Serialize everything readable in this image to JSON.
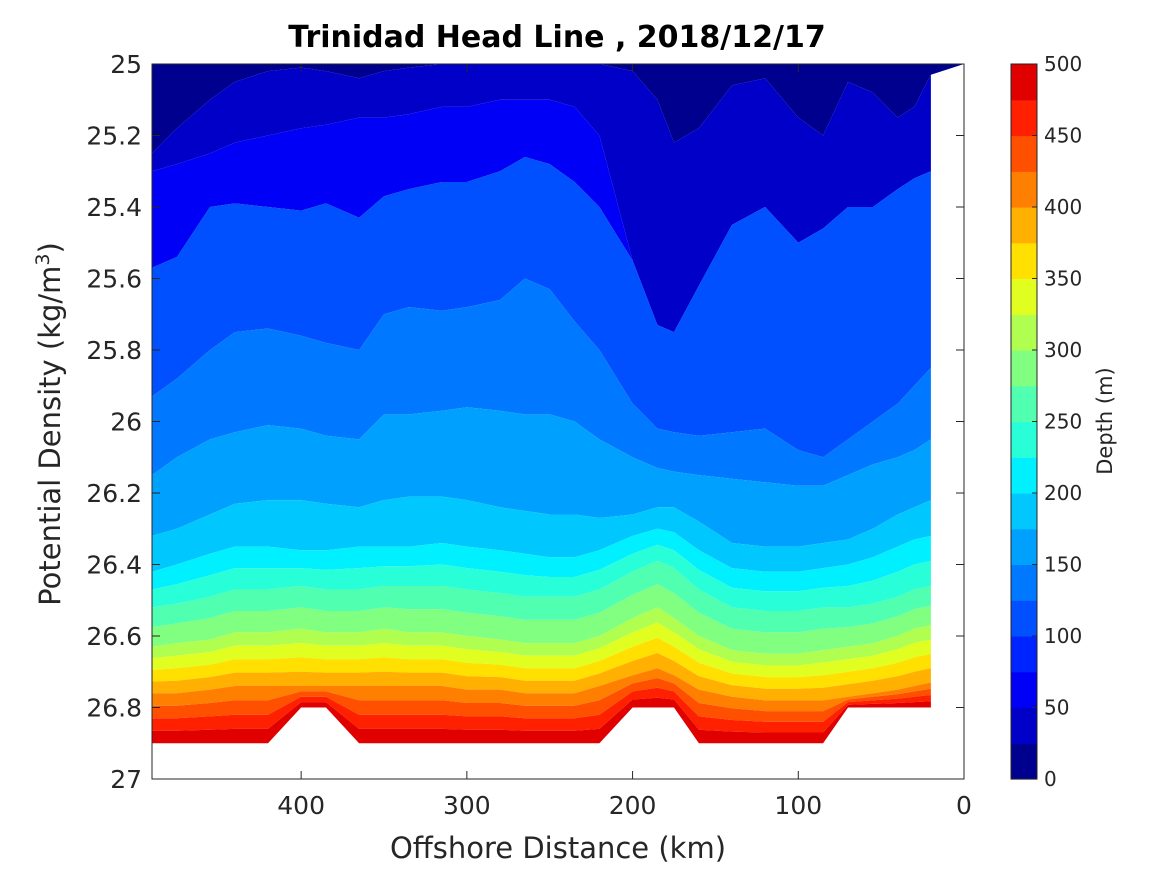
{
  "chart_data": {
    "type": "heatmap",
    "plot_style": "filled contour",
    "title": "Trinidad Head Line , 2018/12/17",
    "xlabel": "Offshore Distance (km)",
    "ylabel": "Potential Density (kg/m3)",
    "ylabel_parts": {
      "main": "Potential Density (kg/m",
      "sup": "3",
      "end": ")"
    },
    "x_reversed": true,
    "y_reversed": true,
    "xlim": [
      490,
      0
    ],
    "ylim": [
      25,
      27
    ],
    "xticks": [
      "400",
      "300",
      "200",
      "100",
      "0"
    ],
    "xtick_values": [
      400,
      300,
      200,
      100,
      0
    ],
    "yticks": [
      "25",
      "25.2",
      "25.4",
      "25.6",
      "25.8",
      "26",
      "26.2",
      "26.4",
      "26.6",
      "26.8",
      "27"
    ],
    "ytick_values": [
      25,
      25.2,
      25.4,
      25.6,
      25.8,
      26,
      26.2,
      26.4,
      26.6,
      26.8,
      27
    ],
    "colorbar": {
      "label": "Depth (m)",
      "min": 0,
      "max": 500,
      "ticks": [
        "0",
        "50",
        "100",
        "150",
        "200",
        "250",
        "300",
        "350",
        "400",
        "450",
        "500"
      ],
      "tick_values": [
        0,
        50,
        100,
        150,
        200,
        250,
        300,
        350,
        400,
        450,
        500
      ],
      "levels": [
        0,
        25,
        50,
        75,
        100,
        125,
        150,
        175,
        200,
        225,
        250,
        275,
        300,
        325,
        350,
        375,
        400,
        425,
        450,
        475,
        500
      ],
      "colormap": "jet",
      "colors": [
        "#00008f",
        "#0000c8",
        "#0000f6",
        "#0024ff",
        "#0050ff",
        "#0078ff",
        "#00a0ff",
        "#00c8ff",
        "#00f0ff",
        "#28ffd8",
        "#50ffb0",
        "#80ff80",
        "#b0ff50",
        "#e0ff20",
        "#ffe000",
        "#ffb000",
        "#ff8000",
        "#ff5000",
        "#ff2000",
        "#e00000",
        "#a80000"
      ]
    },
    "x_stations_km": [
      490,
      475,
      455,
      440,
      420,
      400,
      385,
      365,
      350,
      335,
      315,
      300,
      280,
      265,
      250,
      235,
      220,
      200,
      185,
      175,
      160,
      140,
      120,
      100,
      85,
      70,
      55,
      40,
      30,
      20
    ],
    "series": [
      {
        "depth_m": 25,
        "density": [
          25.25,
          25.18,
          25.1,
          25.05,
          25.02,
          25.01,
          25.02,
          25.04,
          25.02,
          25.01,
          25.0,
          25.0,
          25.0,
          25.0,
          25.0,
          25.0,
          25.0,
          25.02,
          25.1,
          25.22,
          25.18,
          25.06,
          25.04,
          25.15,
          25.2,
          25.05,
          25.08,
          25.15,
          25.12,
          25.03
        ]
      },
      {
        "depth_m": 50,
        "density": [
          25.3,
          25.28,
          25.25,
          25.22,
          25.2,
          25.18,
          25.17,
          25.15,
          25.15,
          25.14,
          25.12,
          25.12,
          25.1,
          25.1,
          25.1,
          25.12,
          25.2,
          25.55,
          25.73,
          25.75,
          25.62,
          25.45,
          25.4,
          25.5,
          25.46,
          25.4,
          25.4,
          25.35,
          25.32,
          25.3
        ]
      },
      {
        "depth_m": 75,
        "density": [
          25.57,
          25.54,
          25.4,
          25.39,
          25.4,
          25.41,
          25.39,
          25.43,
          25.37,
          25.35,
          25.33,
          25.33,
          25.3,
          25.26,
          25.28,
          25.33,
          25.4,
          25.55,
          25.73,
          25.75,
          25.62,
          25.45,
          25.4,
          25.5,
          25.46,
          25.4,
          25.4,
          25.35,
          25.32,
          25.3
        ]
      },
      {
        "depth_m": 100,
        "density": [
          25.57,
          25.54,
          25.4,
          25.39,
          25.4,
          25.41,
          25.39,
          25.43,
          25.37,
          25.35,
          25.33,
          25.33,
          25.3,
          25.26,
          25.28,
          25.33,
          25.4,
          25.55,
          25.73,
          25.75,
          25.62,
          25.45,
          25.4,
          25.5,
          25.46,
          25.4,
          25.4,
          25.35,
          25.32,
          25.3
        ]
      },
      {
        "depth_m": 125,
        "density": [
          25.93,
          25.88,
          25.8,
          25.75,
          25.74,
          25.76,
          25.78,
          25.8,
          25.7,
          25.68,
          25.69,
          25.68,
          25.66,
          25.6,
          25.63,
          25.72,
          25.8,
          25.95,
          26.02,
          26.03,
          26.04,
          26.03,
          26.02,
          26.08,
          26.1,
          26.05,
          26.0,
          25.95,
          25.9,
          25.85
        ]
      },
      {
        "depth_m": 150,
        "density": [
          26.15,
          26.1,
          26.05,
          26.03,
          26.01,
          26.02,
          26.04,
          26.05,
          25.98,
          25.98,
          25.97,
          25.96,
          25.97,
          25.98,
          25.98,
          26.0,
          26.05,
          26.1,
          26.13,
          26.14,
          26.15,
          26.16,
          26.17,
          26.18,
          26.18,
          26.15,
          26.12,
          26.1,
          26.08,
          26.05
        ]
      },
      {
        "depth_m": 175,
        "density": [
          26.32,
          26.3,
          26.26,
          26.23,
          26.22,
          26.22,
          26.23,
          26.24,
          26.22,
          26.21,
          26.21,
          26.22,
          26.24,
          26.25,
          26.26,
          26.26,
          26.27,
          26.26,
          26.24,
          26.24,
          26.28,
          26.34,
          26.35,
          26.35,
          26.34,
          26.33,
          26.3,
          26.26,
          26.24,
          26.22
        ]
      },
      {
        "depth_m": 200,
        "density": [
          26.42,
          26.4,
          26.37,
          26.35,
          26.35,
          26.36,
          26.36,
          26.35,
          26.35,
          26.35,
          26.34,
          26.35,
          26.36,
          26.37,
          26.38,
          26.38,
          26.36,
          26.32,
          26.3,
          26.31,
          26.36,
          26.41,
          26.42,
          26.42,
          26.41,
          26.4,
          26.38,
          26.35,
          26.33,
          26.32
        ]
      },
      {
        "depth_m": 250,
        "density": [
          26.52,
          26.51,
          26.49,
          26.47,
          26.47,
          26.46,
          26.47,
          26.47,
          26.46,
          26.46,
          26.46,
          26.47,
          26.48,
          26.49,
          26.49,
          26.49,
          26.47,
          26.42,
          26.39,
          26.41,
          26.47,
          26.52,
          26.53,
          26.53,
          26.52,
          26.52,
          26.51,
          26.49,
          26.47,
          26.46
        ]
      },
      {
        "depth_m": 300,
        "density": [
          26.63,
          26.62,
          26.61,
          26.59,
          26.59,
          26.58,
          26.59,
          26.59,
          26.58,
          26.59,
          26.59,
          26.6,
          26.61,
          26.62,
          26.62,
          26.62,
          26.6,
          26.55,
          26.52,
          26.55,
          26.6,
          26.64,
          26.65,
          26.65,
          26.64,
          26.63,
          26.62,
          26.6,
          26.58,
          26.57
        ]
      },
      {
        "depth_m": 400,
        "density": [
          26.76,
          26.76,
          26.75,
          26.74,
          26.74,
          26.74,
          26.74,
          26.74,
          26.74,
          26.74,
          26.74,
          26.75,
          26.75,
          26.76,
          26.76,
          26.76,
          26.74,
          26.71,
          26.69,
          26.71,
          26.75,
          26.77,
          26.78,
          26.78,
          26.78,
          26.77,
          26.76,
          26.75,
          26.74,
          26.73
        ]
      },
      {
        "depth_m": 500,
        "density": [
          26.9,
          26.9,
          26.9,
          26.9,
          26.9,
          26.8,
          26.8,
          26.9,
          26.9,
          26.9,
          26.9,
          26.9,
          26.9,
          26.9,
          26.9,
          26.9,
          26.9,
          26.8,
          26.8,
          26.8,
          26.9,
          26.9,
          26.9,
          26.9,
          26.9,
          26.8,
          26.8,
          26.8,
          26.8,
          26.8
        ]
      }
    ],
    "grid": false,
    "colorbar_position": "right"
  }
}
